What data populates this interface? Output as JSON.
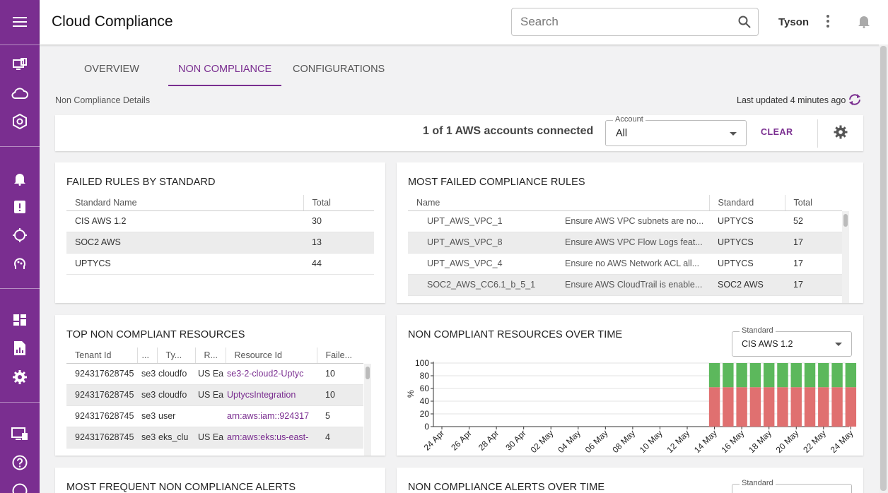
{
  "app": {
    "title": "Cloud Compliance"
  },
  "search": {
    "placeholder": "Search"
  },
  "user": {
    "name": "Tyson"
  },
  "tabs": [
    {
      "label": "OVERVIEW"
    },
    {
      "label": "NON COMPLIANCE"
    },
    {
      "label": "CONFIGURATIONS"
    }
  ],
  "page": {
    "subtitle": "Non Compliance Details",
    "last_updated": "Last updated 4 minutes ago"
  },
  "filter": {
    "accounts_text": "1 of 1 AWS accounts connected",
    "account_label": "Account",
    "account_value": "All",
    "clear_label": "CLEAR"
  },
  "failed_rules": {
    "title": "FAILED RULES BY STANDARD",
    "headers": [
      "Standard Name",
      "Total"
    ],
    "rows": [
      {
        "name": "CIS AWS 1.2",
        "total": "30"
      },
      {
        "name": "SOC2 AWS",
        "total": "13"
      },
      {
        "name": "UPTYCS",
        "total": "44"
      }
    ]
  },
  "most_failed": {
    "title": "MOST FAILED COMPLIANCE RULES",
    "headers": [
      "Name",
      "Standard",
      "Total"
    ],
    "rows": [
      {
        "id": "UPT_AWS_VPC_1",
        "desc": "Ensure AWS VPC subnets are no...",
        "standard": "UPTYCS",
        "total": "52"
      },
      {
        "id": "UPT_AWS_VPC_8",
        "desc": "Ensure AWS VPC Flow Logs feat...",
        "standard": "UPTYCS",
        "total": "17"
      },
      {
        "id": "UPT_AWS_VPC_4",
        "desc": "Ensure no AWS Network ACL all...",
        "standard": "UPTYCS",
        "total": "17"
      },
      {
        "id": "SOC2_AWS_CC6.1_b_5_1",
        "desc": "Ensure AWS CloudTrail is enable...",
        "standard": "SOC2 AWS",
        "total": "17"
      }
    ]
  },
  "top_resources": {
    "title": "TOP NON COMPLIANT RESOURCES",
    "headers": [
      "Tenant Id",
      "...",
      "Ty...",
      "R...",
      "Resource Id",
      "Faile..."
    ],
    "rows": [
      {
        "tenant": "924317628745",
        "c2": "se3",
        "type": "cloudfo",
        "region": "US Ea",
        "resource": "se3-2-cloud2-Uptyc",
        "failed": "10"
      },
      {
        "tenant": "924317628745",
        "c2": "se3",
        "type": "cloudfo",
        "region": "US Ea",
        "resource": "UptycsIntegration",
        "failed": "10"
      },
      {
        "tenant": "924317628745",
        "c2": "se3",
        "type": "user",
        "region": "",
        "resource": "arn:aws:iam::924317",
        "failed": "5"
      },
      {
        "tenant": "924317628745",
        "c2": "se3",
        "type": "eks_clu",
        "region": "US Ea",
        "resource": "arn:aws:eks:us-east-",
        "failed": "4"
      }
    ]
  },
  "resources_over_time": {
    "title": "NON COMPLIANT RESOURCES OVER TIME",
    "standard_label": "Standard",
    "standard_value": "CIS AWS 1.2"
  },
  "chart_data": {
    "type": "bar",
    "stacked": true,
    "ylabel": "%",
    "ylim": [
      0,
      100
    ],
    "yticks": [
      "100",
      "80",
      "60",
      "40",
      "20",
      "0"
    ],
    "x_tick_labels": [
      "24 Apr",
      "26 Apr",
      "28 Apr",
      "30 Apr",
      "02 May",
      "04 May",
      "06 May",
      "08 May",
      "10 May",
      "12 May",
      "14 May",
      "16 May",
      "18 May",
      "20 May",
      "22 May",
      "24 May"
    ],
    "x": [
      "24 Apr",
      "25 Apr",
      "26 Apr",
      "27 Apr",
      "28 Apr",
      "29 Apr",
      "30 Apr",
      "01 May",
      "02 May",
      "03 May",
      "04 May",
      "05 May",
      "06 May",
      "07 May",
      "08 May",
      "09 May",
      "10 May",
      "11 May",
      "12 May",
      "13 May",
      "14 May",
      "15 May",
      "16 May",
      "17 May",
      "18 May",
      "19 May",
      "20 May",
      "21 May",
      "22 May",
      "23 May",
      "24 May"
    ],
    "series": [
      {
        "color": "#e07070",
        "values": [
          0,
          0,
          0,
          0,
          0,
          0,
          0,
          0,
          0,
          0,
          0,
          0,
          0,
          0,
          0,
          0,
          0,
          0,
          0,
          0,
          62,
          62,
          62,
          62,
          62,
          62,
          62,
          62,
          62,
          62,
          62
        ]
      },
      {
        "color": "#5cb85c",
        "values": [
          0,
          0,
          0,
          0,
          0,
          0,
          0,
          0,
          0,
          0,
          0,
          0,
          0,
          0,
          0,
          0,
          0,
          0,
          0,
          0,
          38,
          38,
          38,
          38,
          38,
          38,
          38,
          38,
          38,
          38,
          38
        ]
      }
    ],
    "grid": true
  },
  "frequent_alerts": {
    "title": "MOST FREQUENT NON COMPLIANCE ALERTS"
  },
  "alerts_over_time": {
    "title": "NON COMPLIANCE ALERTS OVER TIME",
    "standard_label": "Standard"
  }
}
